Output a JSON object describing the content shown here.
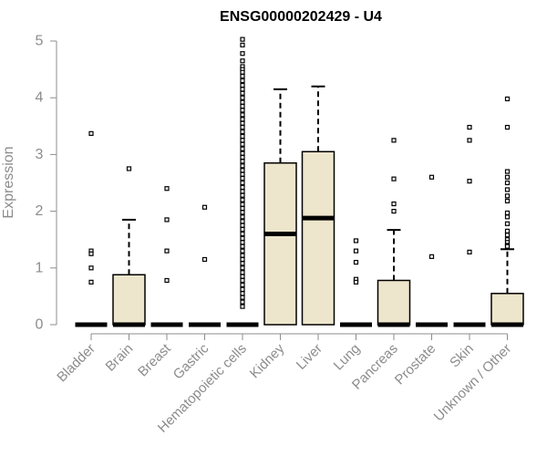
{
  "colors": {
    "box_fill": "#ede6cc",
    "box_stroke": "#000000",
    "median": "#000000",
    "axis": "#8c8c8c",
    "label": "#8c8c8c"
  },
  "chart_data": {
    "type": "boxplot",
    "title": "ENSG00000202429 - U4",
    "xlabel": "",
    "ylabel": "Expression",
    "ylim": [
      0,
      5
    ],
    "yticks": [
      0,
      1,
      2,
      3,
      4,
      5
    ],
    "grid": false,
    "categories": [
      "Bladder",
      "Brain",
      "Breast",
      "Gastric",
      "Hematopoietic cells",
      "Kidney",
      "Liver",
      "Lung",
      "Pancreas",
      "Prostate",
      "Skin",
      "Unknown / Other"
    ],
    "boxes": [
      {
        "category": "Bladder",
        "min": 0,
        "q1": 0,
        "median": 0,
        "q3": 0,
        "max": 0,
        "outliers": [
          3.37,
          1.3,
          1.25,
          1.0,
          0.75
        ]
      },
      {
        "category": "Brain",
        "min": 0,
        "q1": 0,
        "median": 0,
        "q3": 0.88,
        "max": 1.85,
        "outliers": [
          2.75
        ]
      },
      {
        "category": "Breast",
        "min": 0,
        "q1": 0,
        "median": 0,
        "q3": 0,
        "max": 0,
        "outliers": [
          2.4,
          1.85,
          1.3,
          0.78
        ]
      },
      {
        "category": "Gastric",
        "min": 0,
        "q1": 0,
        "median": 0,
        "q3": 0,
        "max": 0,
        "outliers": [
          2.07,
          1.15
        ]
      },
      {
        "category": "Hematopoietic cells",
        "min": 0,
        "q1": 0,
        "median": 0,
        "q3": 0,
        "max": 0,
        "outliers": [
          5.03,
          4.93,
          4.78,
          4.65,
          4.55,
          4.5,
          4.45,
          4.38,
          4.3,
          4.22,
          4.15,
          4.08,
          4.0,
          3.92,
          3.85,
          3.78,
          3.7,
          3.62,
          3.55,
          3.48,
          3.4,
          3.32,
          3.25,
          3.18,
          3.1,
          3.02,
          2.95,
          2.88,
          2.8,
          2.72,
          2.65,
          2.58,
          2.5,
          2.42,
          2.35,
          2.28,
          2.2,
          2.12,
          2.05,
          1.98,
          1.9,
          1.82,
          1.75,
          1.68,
          1.6,
          1.52,
          1.45,
          1.38,
          1.3,
          1.22,
          1.15,
          1.08,
          1.0,
          0.92,
          0.85,
          0.78,
          0.7,
          0.62,
          0.55,
          0.48,
          0.4,
          0.32
        ]
      },
      {
        "category": "Kidney",
        "min": 0,
        "q1": 0,
        "median": 1.6,
        "q3": 2.85,
        "max": 4.15,
        "outliers": []
      },
      {
        "category": "Liver",
        "min": 0,
        "q1": 0,
        "median": 1.88,
        "q3": 3.05,
        "max": 4.2,
        "outliers": []
      },
      {
        "category": "Lung",
        "min": 0,
        "q1": 0,
        "median": 0,
        "q3": 0,
        "max": 0,
        "outliers": [
          1.48,
          1.3,
          1.1,
          0.8,
          0.75
        ]
      },
      {
        "category": "Pancreas",
        "min": 0,
        "q1": 0,
        "median": 0,
        "q3": 0.78,
        "max": 1.67,
        "outliers": [
          3.25,
          2.57,
          2.13,
          2.0
        ]
      },
      {
        "category": "Prostate",
        "min": 0,
        "q1": 0,
        "median": 0,
        "q3": 0,
        "max": 0,
        "outliers": [
          2.6,
          1.2
        ]
      },
      {
        "category": "Skin",
        "min": 0,
        "q1": 0,
        "median": 0,
        "q3": 0,
        "max": 0,
        "outliers": [
          3.48,
          3.25,
          2.53,
          1.28
        ]
      },
      {
        "category": "Unknown / Other",
        "min": 0,
        "q1": 0,
        "median": 0,
        "q3": 0.55,
        "max": 1.33,
        "outliers": [
          3.98,
          3.48,
          2.7,
          2.6,
          2.5,
          2.38,
          2.27,
          2.18,
          1.97,
          1.9,
          1.78,
          1.65,
          1.58,
          1.5,
          1.45,
          1.4,
          1.38
        ]
      }
    ]
  }
}
